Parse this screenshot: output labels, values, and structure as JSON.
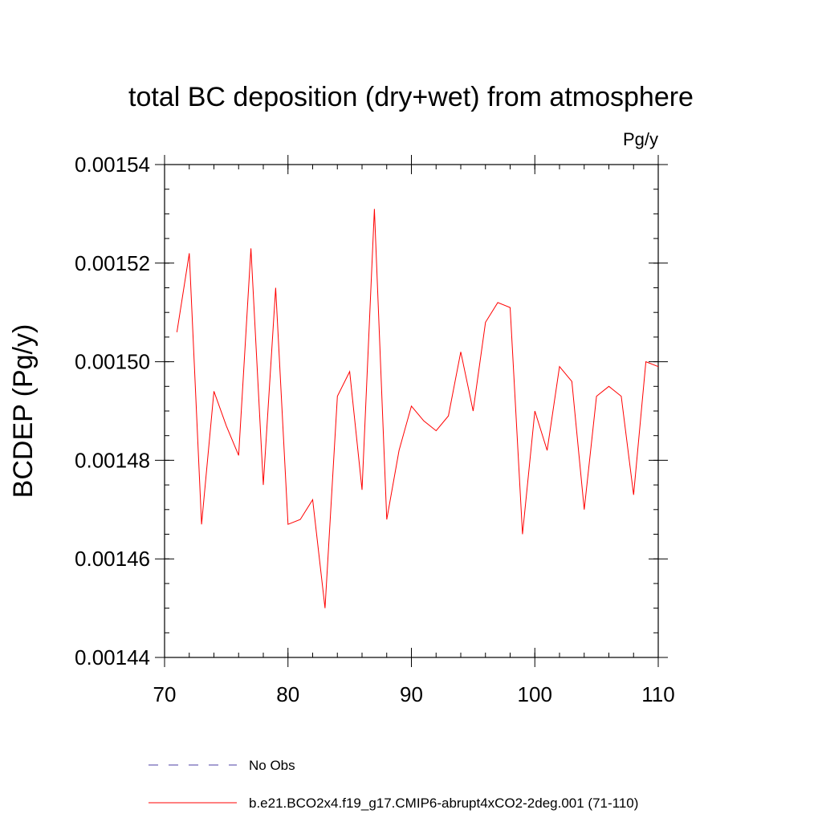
{
  "chart_data": {
    "type": "line",
    "title": "total BC deposition (dry+wet) from atmosphere",
    "units_label": "Pg/y",
    "ylabel": "BCDEP  (Pg/y)",
    "xlabel": "",
    "xlim": [
      70,
      110
    ],
    "ylim": [
      0.00144,
      0.00154
    ],
    "x_ticks": [
      70,
      80,
      90,
      100,
      110
    ],
    "x_tick_labels": [
      "70",
      "80",
      "90",
      "100",
      "110"
    ],
    "y_ticks": [
      0.00144,
      0.00146,
      0.00148,
      0.0015,
      0.00152,
      0.00154
    ],
    "y_tick_labels": [
      "0.00144",
      "0.00146",
      "0.00148",
      "0.00150",
      "0.00152",
      "0.00154"
    ],
    "grid": false,
    "legend_position": "bottom",
    "legend": [
      {
        "label": "No Obs",
        "color": "#4b3fa6",
        "style": "dashed"
      },
      {
        "label": "b.e21.BCO2x4.f19_g17.CMIP6-abrupt4xCO2-2deg.001 (71-110)",
        "color": "#ff0000",
        "style": "solid"
      }
    ],
    "series": [
      {
        "name": "b.e21.BCO2x4.f19_g17.CMIP6-abrupt4xCO2-2deg.001 (71-110)",
        "color": "#ff0000",
        "x": [
          71,
          72,
          73,
          74,
          75,
          76,
          77,
          78,
          79,
          80,
          81,
          82,
          83,
          84,
          85,
          86,
          87,
          88,
          89,
          90,
          91,
          92,
          93,
          94,
          95,
          96,
          97,
          98,
          99,
          100,
          101,
          102,
          103,
          104,
          105,
          106,
          107,
          108,
          109,
          110
        ],
        "values": [
          0.001506,
          0.001522,
          0.001467,
          0.001494,
          0.001487,
          0.001481,
          0.001523,
          0.001475,
          0.001515,
          0.001467,
          0.001468,
          0.001472,
          0.00145,
          0.001493,
          0.001498,
          0.001474,
          0.001531,
          0.001468,
          0.001482,
          0.001491,
          0.001488,
          0.001486,
          0.001489,
          0.001502,
          0.00149,
          0.001508,
          0.001512,
          0.001511,
          0.001465,
          0.00149,
          0.001482,
          0.001499,
          0.001496,
          0.00147,
          0.001493,
          0.001495,
          0.001493,
          0.001473,
          0.0015,
          0.001499
        ]
      }
    ]
  }
}
